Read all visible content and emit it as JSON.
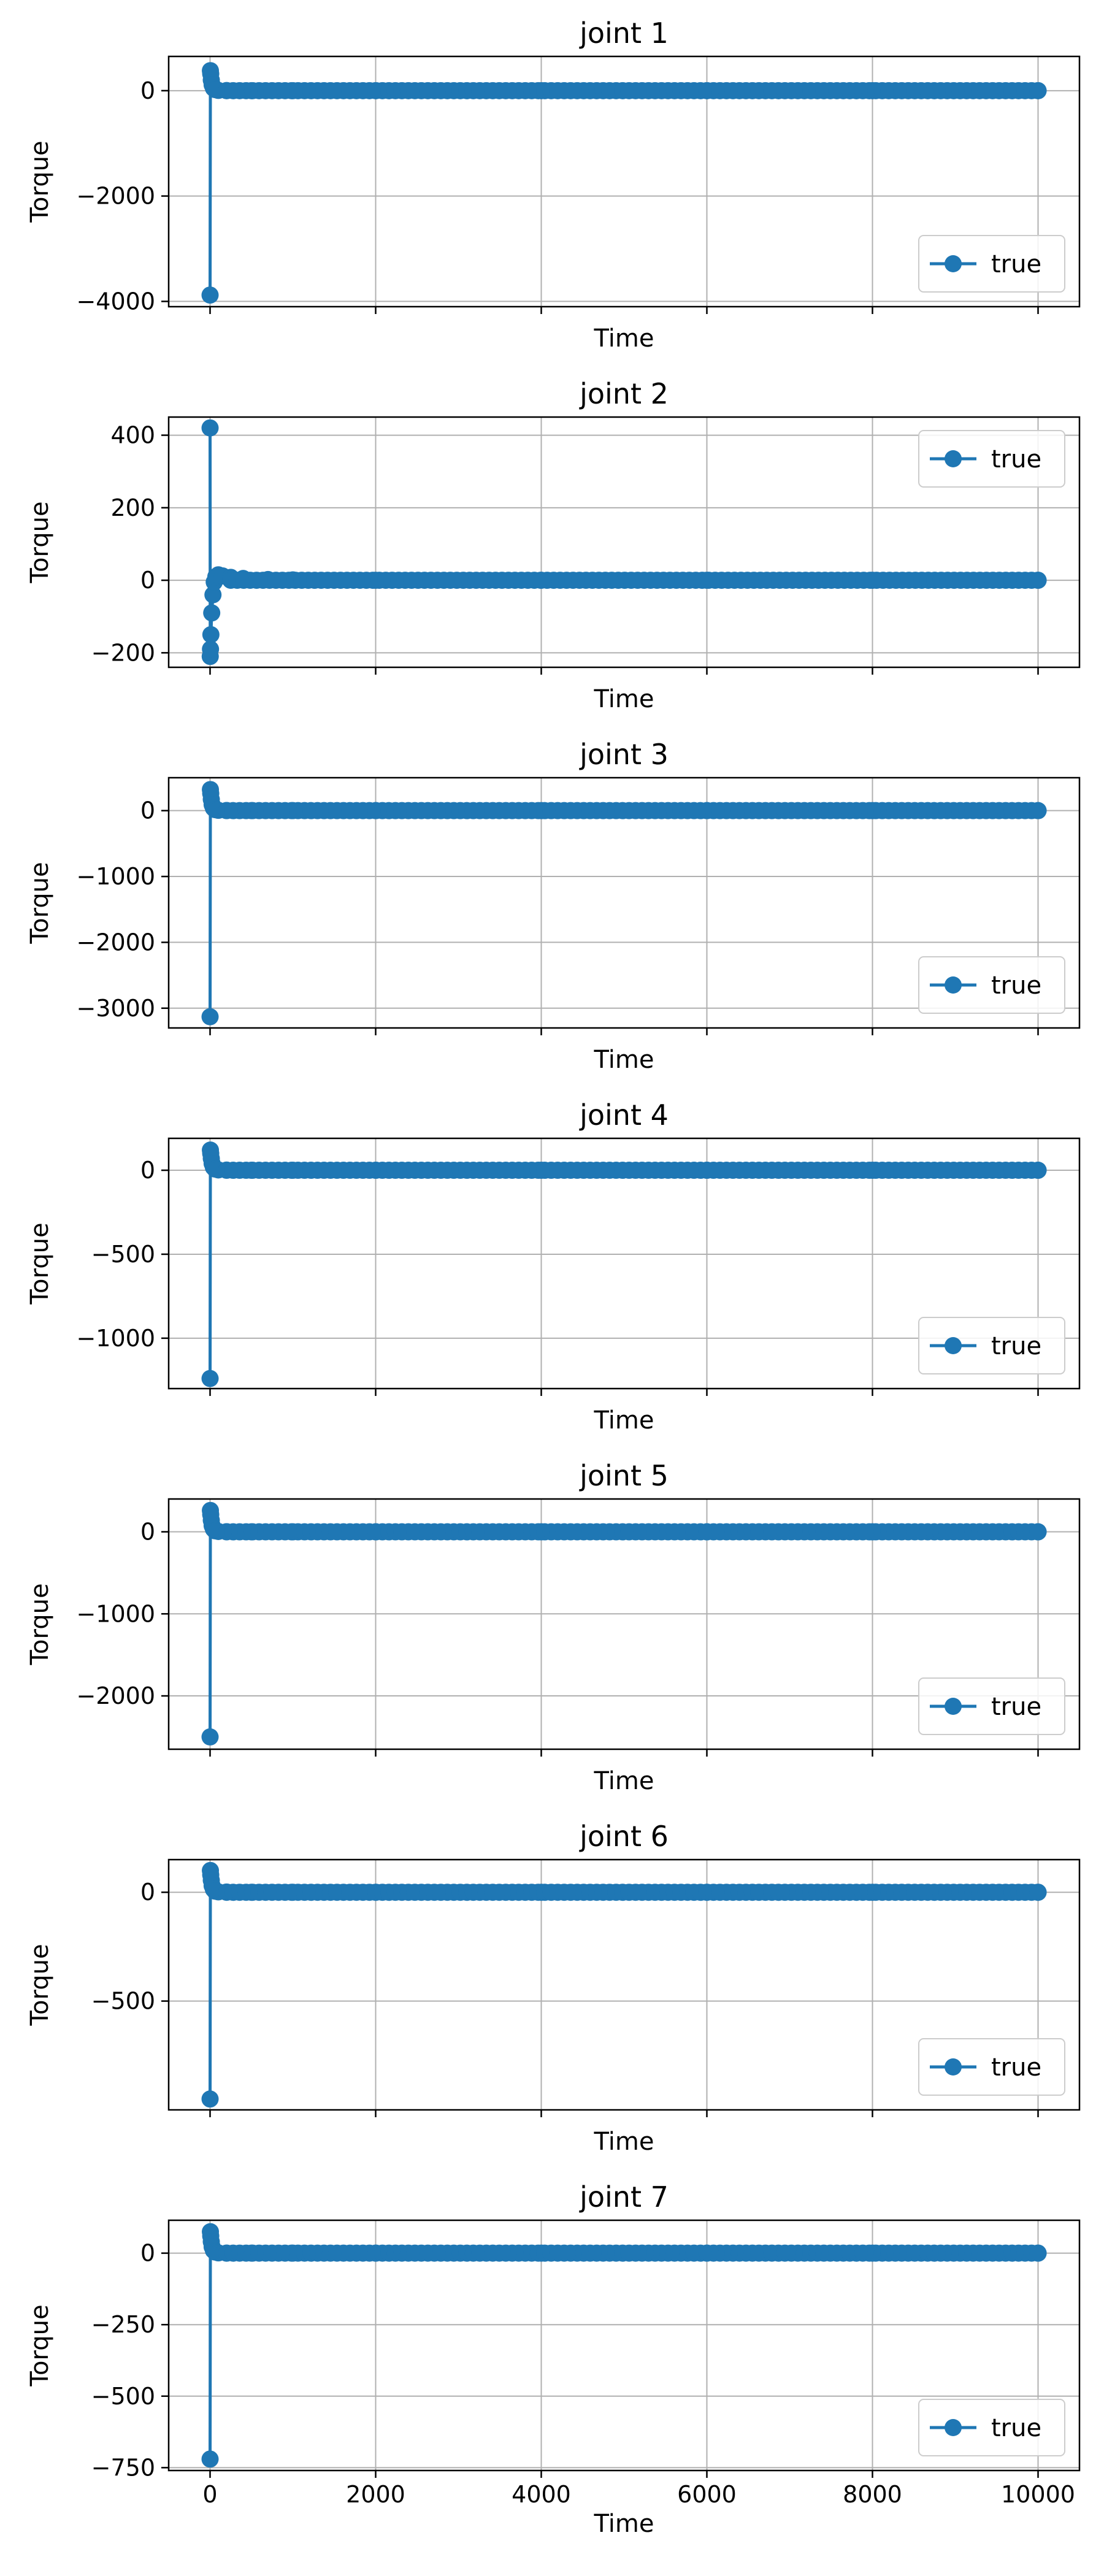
{
  "colors": {
    "series": "#1f77b4",
    "grid": "#b0b0b0",
    "axes": "#000000",
    "legend_border": "#cccccc"
  },
  "chart_data": [
    {
      "type": "line",
      "title": "joint 1",
      "xlabel": "Time",
      "ylabel": "Torque",
      "xlim": [
        -500,
        10500
      ],
      "ylim": [
        -4100,
        650
      ],
      "xticks": [
        0,
        2000,
        4000,
        6000,
        8000,
        10000
      ],
      "xticklabels_visible": false,
      "yticks": [
        -4000,
        -2000,
        0
      ],
      "yticklabels": [
        "−4000",
        "−2000",
        "0"
      ],
      "grid": true,
      "legend": "lower right",
      "series": [
        {
          "name": "true",
          "marker": "o",
          "x": [
            0,
            4,
            8,
            15,
            25,
            40,
            60,
            100,
            200,
            500,
            1000,
            2000,
            4000,
            6000,
            8000,
            10000
          ],
          "y": [
            -3880,
            380,
            320,
            200,
            110,
            50,
            20,
            5,
            2,
            0,
            0,
            0,
            0,
            0,
            0,
            0
          ]
        }
      ]
    },
    {
      "type": "line",
      "title": "joint 2",
      "xlabel": "Time",
      "ylabel": "Torque",
      "xlim": [
        -500,
        10500
      ],
      "ylim": [
        -240,
        450
      ],
      "xticks": [
        0,
        2000,
        4000,
        6000,
        8000,
        10000
      ],
      "xticklabels_visible": false,
      "yticks": [
        -200,
        0,
        200,
        400
      ],
      "yticklabels": [
        "−200",
        "0",
        "200",
        "400"
      ],
      "grid": true,
      "legend": "upper right",
      "series": [
        {
          "name": "true",
          "marker": "o",
          "x": [
            0,
            2,
            5,
            10,
            20,
            35,
            50,
            70,
            100,
            150,
            250,
            400,
            700,
            1000,
            2000,
            4000,
            6000,
            8000,
            10000
          ],
          "y": [
            420,
            -210,
            -190,
            -150,
            -90,
            -40,
            -5,
            10,
            15,
            12,
            8,
            5,
            2,
            1,
            0,
            0,
            0,
            0,
            0
          ]
        }
      ]
    },
    {
      "type": "line",
      "title": "joint 3",
      "xlabel": "Time",
      "ylabel": "Torque",
      "xlim": [
        -500,
        10500
      ],
      "ylim": [
        -3300,
        500
      ],
      "xticks": [
        0,
        2000,
        4000,
        6000,
        8000,
        10000
      ],
      "xticklabels_visible": false,
      "yticks": [
        -3000,
        -2000,
        -1000,
        0
      ],
      "yticklabels": [
        "−3000",
        "−2000",
        "−1000",
        "0"
      ],
      "grid": true,
      "legend": "lower right",
      "series": [
        {
          "name": "true",
          "marker": "o",
          "x": [
            0,
            4,
            8,
            15,
            25,
            40,
            60,
            100,
            200,
            500,
            1000,
            2000,
            4000,
            6000,
            8000,
            10000
          ],
          "y": [
            -3130,
            320,
            260,
            170,
            90,
            40,
            15,
            5,
            2,
            0,
            0,
            0,
            0,
            0,
            0,
            0
          ]
        }
      ]
    },
    {
      "type": "line",
      "title": "joint 4",
      "xlabel": "Time",
      "ylabel": "Torque",
      "xlim": [
        -500,
        10500
      ],
      "ylim": [
        -1300,
        190
      ],
      "xticks": [
        0,
        2000,
        4000,
        6000,
        8000,
        10000
      ],
      "xticklabels_visible": false,
      "yticks": [
        -1000,
        -500,
        0
      ],
      "yticklabels": [
        "−1000",
        "−500",
        "0"
      ],
      "grid": true,
      "legend": "lower right",
      "series": [
        {
          "name": "true",
          "marker": "o",
          "x": [
            0,
            4,
            8,
            15,
            25,
            40,
            60,
            100,
            200,
            500,
            1000,
            2000,
            4000,
            6000,
            8000,
            10000
          ],
          "y": [
            -1240,
            120,
            100,
            70,
            40,
            18,
            7,
            2,
            1,
            0,
            0,
            0,
            0,
            0,
            0,
            0
          ]
        }
      ]
    },
    {
      "type": "line",
      "title": "joint 5",
      "xlabel": "Time",
      "ylabel": "Torque",
      "xlim": [
        -500,
        10500
      ],
      "ylim": [
        -2650,
        400
      ],
      "xticks": [
        0,
        2000,
        4000,
        6000,
        8000,
        10000
      ],
      "xticklabels_visible": false,
      "yticks": [
        -2000,
        -1000,
        0
      ],
      "yticklabels": [
        "−2000",
        "−1000",
        "0"
      ],
      "grid": true,
      "legend": "lower right",
      "series": [
        {
          "name": "true",
          "marker": "o",
          "x": [
            0,
            4,
            8,
            15,
            25,
            40,
            60,
            100,
            200,
            500,
            1000,
            2000,
            4000,
            6000,
            8000,
            10000
          ],
          "y": [
            -2500,
            260,
            210,
            140,
            75,
            35,
            12,
            4,
            1,
            0,
            0,
            0,
            0,
            0,
            0,
            0
          ]
        }
      ]
    },
    {
      "type": "line",
      "title": "joint 6",
      "xlabel": "Time",
      "ylabel": "Torque",
      "xlim": [
        -500,
        10500
      ],
      "ylim": [
        -1000,
        150
      ],
      "xticks": [
        0,
        2000,
        4000,
        6000,
        8000,
        10000
      ],
      "xticklabels_visible": false,
      "yticks": [
        -500,
        0
      ],
      "yticklabels": [
        "−500",
        "0"
      ],
      "grid": true,
      "legend": "lower right",
      "series": [
        {
          "name": "true",
          "marker": "o",
          "x": [
            0,
            4,
            8,
            15,
            25,
            40,
            60,
            100,
            200,
            500,
            1000,
            2000,
            4000,
            6000,
            8000,
            10000
          ],
          "y": [
            -950,
            100,
            80,
            55,
            30,
            14,
            5,
            2,
            1,
            0,
            0,
            0,
            0,
            0,
            0,
            0
          ]
        }
      ]
    },
    {
      "type": "line",
      "title": "joint 7",
      "xlabel": "Time",
      "ylabel": "Torque",
      "xlim": [
        -500,
        10500
      ],
      "ylim": [
        -760,
        115
      ],
      "xticks": [
        0,
        2000,
        4000,
        6000,
        8000,
        10000
      ],
      "xticklabels_visible": true,
      "xticklabels": [
        "0",
        "2000",
        "4000",
        "6000",
        "8000",
        "10000"
      ],
      "yticks": [
        -750,
        -500,
        -250,
        0
      ],
      "yticklabels": [
        "−750",
        "−500",
        "−250",
        "0"
      ],
      "grid": true,
      "legend": "lower right",
      "series": [
        {
          "name": "true",
          "marker": "o",
          "x": [
            0,
            4,
            8,
            15,
            25,
            40,
            60,
            100,
            200,
            500,
            1000,
            2000,
            4000,
            6000,
            8000,
            10000
          ],
          "y": [
            -720,
            75,
            60,
            40,
            22,
            10,
            4,
            1,
            0,
            0,
            0,
            0,
            0,
            0,
            0,
            0
          ]
        }
      ]
    }
  ]
}
